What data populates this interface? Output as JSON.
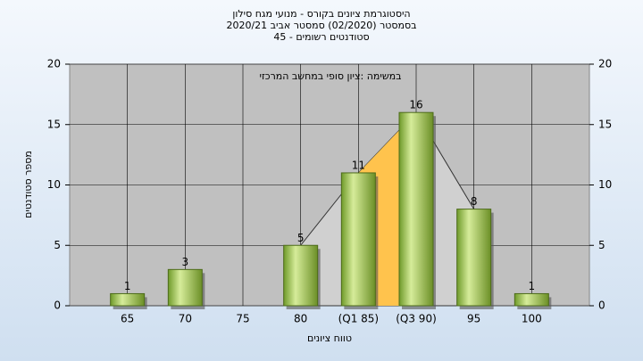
{
  "chart_data": {
    "type": "bar",
    "title": "היסטוגרמת ציונים בקורס - מנועי מגח סילון",
    "subtitle": "בסמסטר  (02/2020)  סמסטר אביב 2020/21",
    "subtitle2": "סטודנטים רשומים - 45",
    "annotation": "במשימה :ציון סופי במחשב המרכזי",
    "x_label": "טווח ציונים",
    "y_label": "מספר סטודנטים",
    "categories": [
      "65",
      "70",
      "75",
      "80",
      "(Q1 85)",
      "(Q3 90)",
      "95",
      "100"
    ],
    "values": [
      1,
      3,
      null,
      5,
      11,
      16,
      8,
      1
    ],
    "color": "#9cc14a",
    "ylim": [
      0,
      20
    ],
    "yticks": [
      0,
      5,
      10,
      15,
      20
    ],
    "y2lim": [
      0,
      20
    ],
    "y2ticks": [
      0,
      5,
      10,
      15,
      20
    ],
    "grid": true
  }
}
